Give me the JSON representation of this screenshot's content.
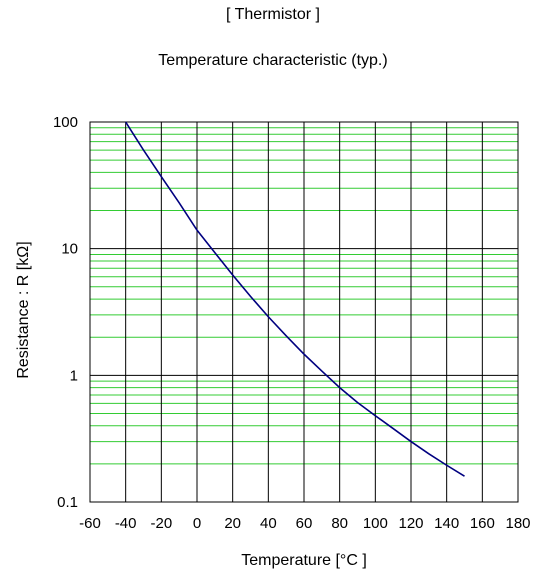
{
  "header": {
    "super_title": "[ Thermistor ]"
  },
  "chart_data": {
    "type": "line",
    "title": "Temperature characteristic (typ.)",
    "xlabel": "Temperature  [°C ]",
    "ylabel": "Resistance : R [kΩ]",
    "xlim": [
      -60,
      180
    ],
    "ylim": [
      0.1,
      100
    ],
    "y_scale": "log",
    "grid": true,
    "grid_colors": {
      "major": "#000000",
      "minor": "#33cc33"
    },
    "line_color": "#000080",
    "x_ticks": [
      "-60",
      "-40",
      "-20",
      "0",
      "20",
      "40",
      "60",
      "80",
      "100",
      "120",
      "140",
      "160",
      "180"
    ],
    "y_ticks": [
      "0.1",
      "1",
      "10",
      "100"
    ],
    "series": [
      {
        "x": [
          -40,
          -30,
          -20,
          -10,
          0,
          10,
          20,
          30,
          40,
          50,
          60,
          70,
          80,
          90,
          100,
          110,
          120,
          130,
          140,
          150
        ],
        "y": [
          100,
          60,
          37,
          23,
          14,
          9.3,
          6.2,
          4.2,
          2.9,
          2.05,
          1.47,
          1.08,
          0.8,
          0.61,
          0.48,
          0.38,
          0.3,
          0.24,
          0.195,
          0.16
        ]
      }
    ]
  }
}
